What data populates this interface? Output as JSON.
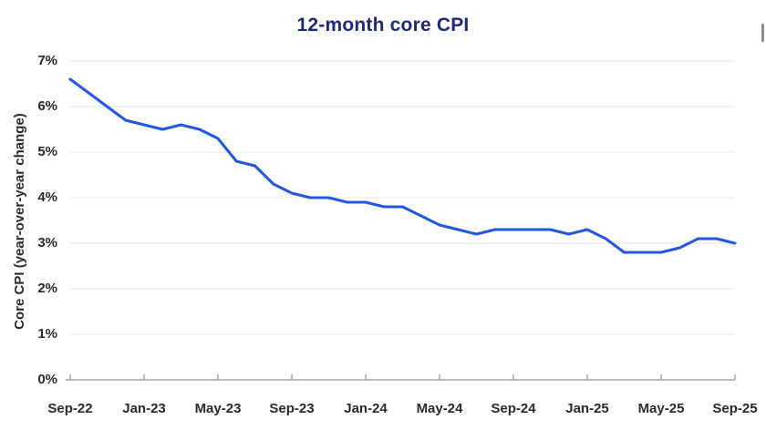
{
  "chart_data": {
    "type": "line",
    "title": "12-month core CPI",
    "xlabel": "",
    "ylabel": "Core CPI (year-over-year change)",
    "x": [
      "Sep-22",
      "Oct-22",
      "Nov-22",
      "Dec-22",
      "Jan-23",
      "Feb-23",
      "Mar-23",
      "Apr-23",
      "May-23",
      "Jun-23",
      "Jul-23",
      "Aug-23",
      "Sep-23",
      "Oct-23",
      "Nov-23",
      "Dec-23",
      "Jan-24",
      "Feb-24",
      "Mar-24",
      "Apr-24",
      "May-24",
      "Jun-24",
      "Jul-24",
      "Aug-24",
      "Sep-24",
      "Oct-24",
      "Nov-24",
      "Dec-24",
      "Jan-25",
      "Feb-25",
      "Mar-25",
      "Apr-25",
      "May-25",
      "Jun-25",
      "Jul-25",
      "Aug-25",
      "Sep-25"
    ],
    "values": [
      6.6,
      6.3,
      6.0,
      5.7,
      5.6,
      5.5,
      5.6,
      5.5,
      5.3,
      4.8,
      4.7,
      4.3,
      4.1,
      4.0,
      4.0,
      3.9,
      3.9,
      3.8,
      3.8,
      3.6,
      3.4,
      3.3,
      3.2,
      3.3,
      3.3,
      3.3,
      3.3,
      3.2,
      3.3,
      3.1,
      2.8,
      2.8,
      2.8,
      2.9,
      3.1,
      3.1,
      3.0
    ],
    "x_tick_labels": [
      "Sep-22",
      "Jan-23",
      "May-23",
      "Sep-23",
      "Jan-24",
      "May-24",
      "Sep-24",
      "Jan-25",
      "May-25",
      "Sep-25"
    ],
    "y_ticks": [
      "0%",
      "1%",
      "2%",
      "3%",
      "4%",
      "5%",
      "6%",
      "7%"
    ],
    "ylim": [
      0,
      7
    ],
    "grid": "horizontal",
    "legend_position": "none",
    "units": "percent"
  },
  "colors": {
    "line": "#2457e5",
    "title": "#1f2a78",
    "tick_label": "#2b2b2b",
    "gridline": "#e7e7e7",
    "axis_line": "#a6a6a6",
    "edge_sliver": "#878c92"
  }
}
